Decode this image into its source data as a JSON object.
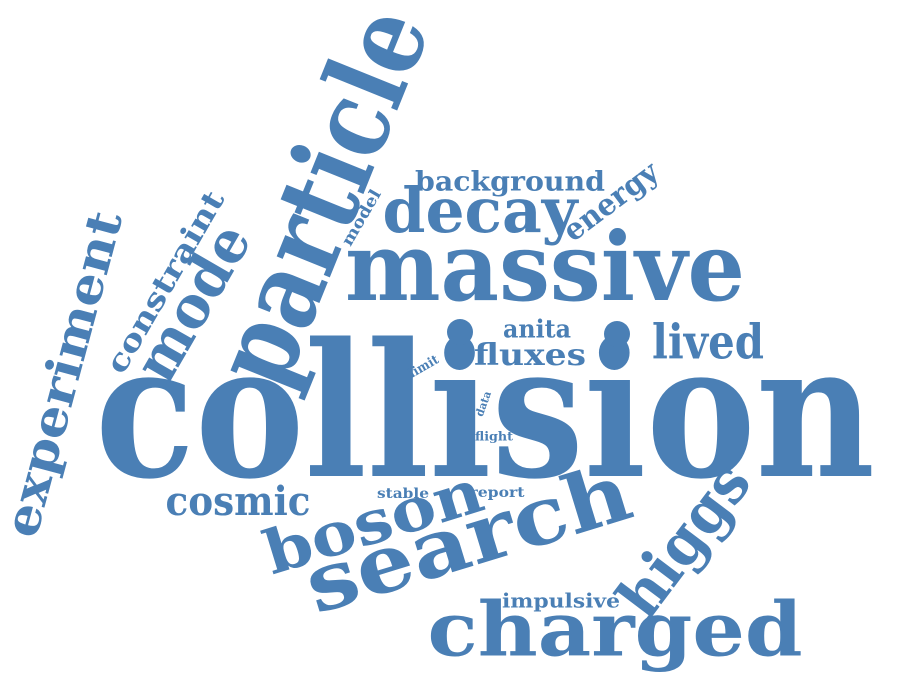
{
  "cloud": {
    "color": "#4a7fb5",
    "background": "#ffffff",
    "words": [
      {
        "text": "collision"
      },
      {
        "text": "particle"
      },
      {
        "text": "massive"
      },
      {
        "text": "search"
      },
      {
        "text": "charged"
      },
      {
        "text": "decay"
      },
      {
        "text": "boson"
      },
      {
        "text": "higgs"
      },
      {
        "text": "mode"
      },
      {
        "text": "experiment"
      },
      {
        "text": "lived"
      },
      {
        "text": "cosmic"
      },
      {
        "text": "constraint"
      },
      {
        "text": "background"
      },
      {
        "text": "energy"
      },
      {
        "text": "fluxes"
      },
      {
        "text": "anita"
      },
      {
        "text": "impulsive"
      },
      {
        "text": "model"
      },
      {
        "text": "limit"
      },
      {
        "text": "data"
      },
      {
        "text": "flight"
      },
      {
        "text": "stable"
      },
      {
        "text": "report"
      }
    ]
  }
}
